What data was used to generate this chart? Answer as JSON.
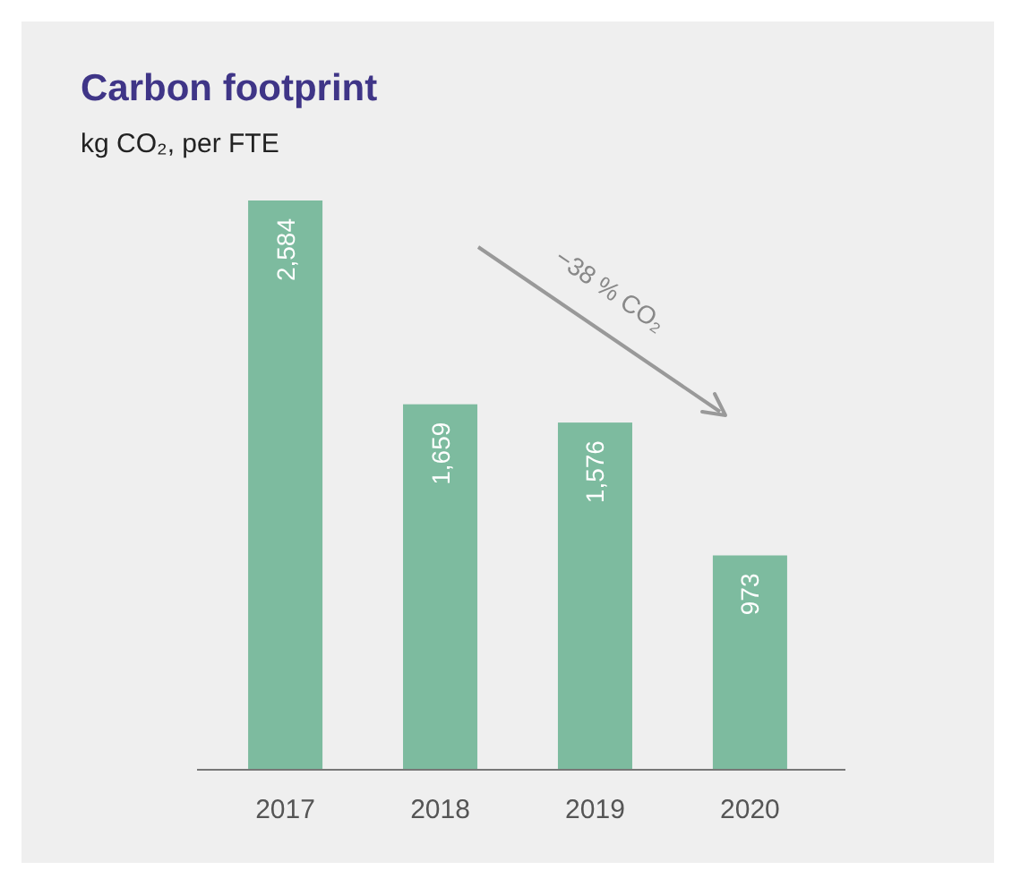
{
  "chart_data": {
    "type": "bar",
    "title": "Carbon footprint",
    "subtitle": "kg CO₂, per FTE",
    "categories": [
      "2017",
      "2018",
      "2019",
      "2020"
    ],
    "values": [
      2584,
      1659,
      1576,
      973
    ],
    "value_labels": [
      "2,584",
      "1,659",
      "1,576",
      "973"
    ],
    "color": "#7dbb9f",
    "annotations": [
      "−38 % CO₂"
    ]
  }
}
